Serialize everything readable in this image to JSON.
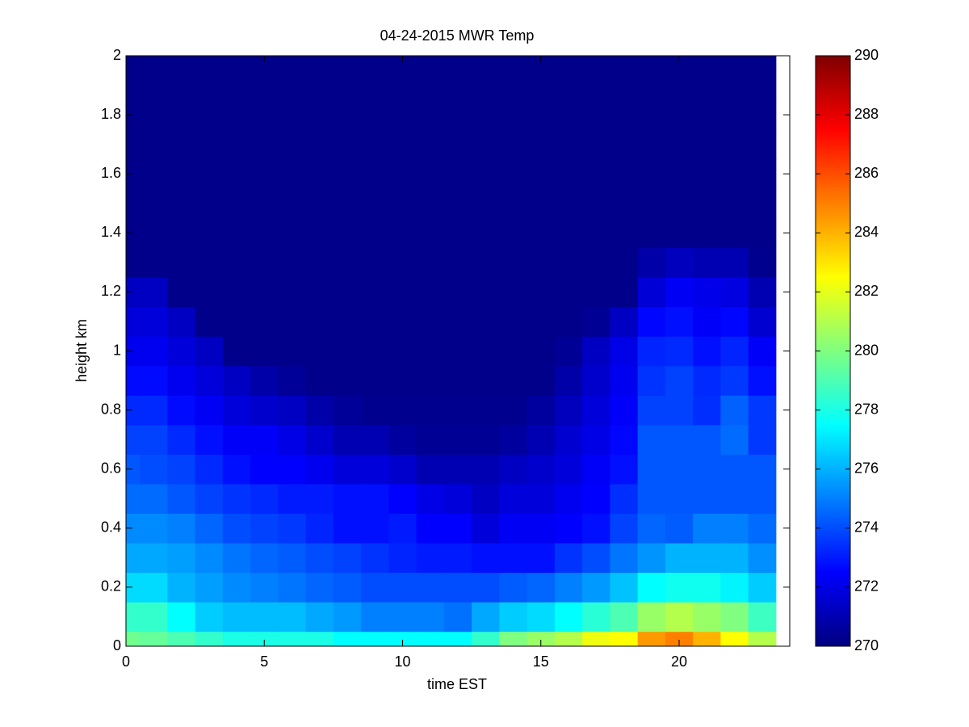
{
  "chart_data": {
    "type": "heatmap",
    "title": "04-24-2015 MWR Temp",
    "xlabel": "time EST",
    "ylabel": "height km",
    "colormap": "jet",
    "xlim": [
      0,
      24
    ],
    "ylim": [
      0,
      2
    ],
    "xticks": [
      0,
      5,
      10,
      15,
      20
    ],
    "yticks": [
      0,
      0.2,
      0.4,
      0.6,
      0.8,
      1,
      1.2,
      1.4,
      1.6,
      1.8,
      2
    ],
    "x_edges": [
      0,
      0.5,
      1.5,
      2.5,
      3.5,
      4.5,
      5.5,
      6.5,
      7.5,
      8.5,
      9.5,
      10.5,
      11.5,
      12.5,
      13.5,
      14.5,
      15.5,
      16.5,
      17.5,
      18.5,
      19.5,
      20.5,
      21.5,
      22.5,
      23.5
    ],
    "y_edges": [
      0,
      0.05,
      0.15,
      0.25,
      0.35,
      0.45,
      0.55,
      0.65,
      0.75,
      0.85,
      0.95,
      1.05,
      1.15,
      1.25,
      1.35,
      1.45,
      1.55,
      1.65,
      1.75,
      1.85,
      1.95,
      2
    ],
    "values": [
      [
        279.7,
        279.5,
        279,
        278.5,
        278,
        278,
        278,
        278,
        277.5,
        277.5,
        277.5,
        277.5,
        277.5,
        278.5,
        280,
        280.5,
        281,
        282.2,
        282.5,
        284.5,
        285,
        284,
        282.5,
        281
      ],
      [
        278.5,
        278.5,
        277.5,
        276.5,
        276.2,
        276.2,
        276.2,
        275.8,
        275.5,
        275,
        275,
        275,
        274.7,
        275.8,
        276.5,
        276.8,
        277.5,
        278.3,
        279,
        280.5,
        281,
        280.5,
        280,
        278.7
      ],
      [
        276.8,
        276.8,
        276,
        275.6,
        275.2,
        275,
        274.8,
        274.5,
        274.3,
        274,
        274,
        274,
        274,
        274,
        274.3,
        274.5,
        275,
        275.5,
        276.3,
        277.5,
        277.8,
        277.8,
        277.3,
        276.5
      ],
      [
        275.8,
        275.8,
        275.6,
        275.2,
        274.8,
        274.5,
        274.3,
        274,
        273.8,
        273.5,
        273.2,
        273,
        273,
        272.8,
        272.8,
        272.8,
        273.5,
        274,
        274.8,
        275.4,
        276,
        276,
        276,
        275.3
      ],
      [
        275.2,
        275.2,
        275,
        274.5,
        274,
        273.8,
        273.6,
        273.2,
        272.8,
        272.8,
        273,
        272.5,
        272.5,
        271.8,
        272.3,
        272.3,
        272.5,
        272.8,
        273.8,
        274.5,
        274.3,
        275,
        275,
        274.6
      ],
      [
        274.6,
        274.6,
        274.2,
        273.8,
        273.5,
        273.3,
        273,
        273,
        272.8,
        272.8,
        272.5,
        272,
        271.8,
        271.3,
        271.8,
        271.8,
        272.2,
        272.5,
        273.4,
        274.2,
        274.2,
        274.2,
        274.2,
        274.2
      ],
      [
        274.2,
        274,
        273.8,
        273.3,
        272.8,
        272.5,
        272.5,
        272.2,
        271.8,
        271.8,
        271.5,
        271,
        271,
        271,
        271.3,
        271.5,
        271.8,
        272.4,
        272.8,
        274.2,
        274.2,
        274.2,
        274.2,
        274.2
      ],
      [
        273.8,
        273.8,
        273.3,
        272.8,
        272.4,
        272.4,
        272,
        271.5,
        271,
        271,
        270.6,
        270.4,
        270.4,
        270.4,
        270.6,
        271,
        271.6,
        272,
        272.6,
        274.2,
        274.2,
        274.2,
        274.6,
        273.6
      ],
      [
        273.3,
        273.3,
        272.7,
        272.3,
        271.8,
        271.5,
        271.3,
        270.8,
        270.5,
        270.3,
        270.3,
        270.3,
        270.3,
        270.3,
        270.3,
        270.6,
        271.2,
        271.8,
        272.4,
        273.8,
        273.8,
        273.4,
        274.4,
        273.6
      ],
      [
        272.7,
        272.7,
        272.2,
        271.8,
        271.3,
        270.8,
        270.5,
        270.2,
        270.2,
        270.2,
        270.2,
        270.2,
        270.2,
        270.2,
        270.2,
        270.2,
        270.8,
        271.5,
        272.2,
        273.5,
        273.8,
        273.3,
        273.6,
        272.8
      ],
      [
        272.2,
        272.2,
        271.8,
        271.3,
        270.2,
        270.2,
        270.2,
        270.2,
        270.2,
        270.2,
        270.2,
        270.2,
        270.2,
        270.2,
        270.2,
        270.2,
        270.4,
        271.3,
        272,
        273.2,
        273.3,
        272.8,
        273.2,
        272.4
      ],
      [
        271.8,
        271.8,
        271.3,
        270.2,
        270.2,
        270.2,
        270.2,
        270.2,
        270.2,
        270.2,
        270.2,
        270.2,
        270.2,
        270.2,
        270.2,
        270.2,
        270.2,
        270.4,
        271.3,
        272.6,
        272.8,
        272.4,
        272.6,
        271.6
      ],
      [
        271.3,
        271.3,
        270.2,
        270.2,
        270.2,
        270.2,
        270.2,
        270.2,
        270.2,
        270.2,
        270.2,
        270.2,
        270.2,
        270.2,
        270.2,
        270.2,
        270.2,
        270.2,
        270.2,
        271.7,
        272.3,
        272.1,
        271.9,
        271
      ],
      [
        270.2,
        270.2,
        270.2,
        270.2,
        270.2,
        270.2,
        270.2,
        270.2,
        270.2,
        270.2,
        270.2,
        270.2,
        270.2,
        270.2,
        270.2,
        270.2,
        270.2,
        270.2,
        270.2,
        270.8,
        271.2,
        271,
        271,
        270.3
      ],
      [
        270.2,
        270.2,
        270.2,
        270.2,
        270.2,
        270.2,
        270.2,
        270.2,
        270.2,
        270.2,
        270.2,
        270.2,
        270.2,
        270.2,
        270.2,
        270.2,
        270.2,
        270.2,
        270.2,
        270.2,
        270.2,
        270.2,
        270.2,
        270.2
      ],
      [
        270.2,
        270.2,
        270.2,
        270.2,
        270.2,
        270.2,
        270.2,
        270.2,
        270.2,
        270.2,
        270.2,
        270.2,
        270.2,
        270.2,
        270.2,
        270.2,
        270.2,
        270.2,
        270.2,
        270.2,
        270.2,
        270.2,
        270.2,
        270.2
      ],
      [
        270.2,
        270.2,
        270.2,
        270.2,
        270.2,
        270.2,
        270.2,
        270.2,
        270.2,
        270.2,
        270.2,
        270.2,
        270.2,
        270.2,
        270.2,
        270.2,
        270.2,
        270.2,
        270.2,
        270.2,
        270.2,
        270.2,
        270.2,
        270.2
      ],
      [
        270.2,
        270.2,
        270.2,
        270.2,
        270.2,
        270.2,
        270.2,
        270.2,
        270.2,
        270.2,
        270.2,
        270.2,
        270.2,
        270.2,
        270.2,
        270.2,
        270.2,
        270.2,
        270.2,
        270.2,
        270.2,
        270.2,
        270.2,
        270.2
      ],
      [
        270.2,
        270.2,
        270.2,
        270.2,
        270.2,
        270.2,
        270.2,
        270.2,
        270.2,
        270.2,
        270.2,
        270.2,
        270.2,
        270.2,
        270.2,
        270.2,
        270.2,
        270.2,
        270.2,
        270.2,
        270.2,
        270.2,
        270.2,
        270.2
      ],
      [
        270.2,
        270.2,
        270.2,
        270.2,
        270.2,
        270.2,
        270.2,
        270.2,
        270.2,
        270.2,
        270.2,
        270.2,
        270.2,
        270.2,
        270.2,
        270.2,
        270.2,
        270.2,
        270.2,
        270.2,
        270.2,
        270.2,
        270.2,
        270.2
      ],
      [
        270.2,
        270.2,
        270.2,
        270.2,
        270.2,
        270.2,
        270.2,
        270.2,
        270.2,
        270.2,
        270.2,
        270.2,
        270.2,
        270.2,
        270.2,
        270.2,
        270.2,
        270.2,
        270.2,
        270.2,
        270.2,
        270.2,
        270.2,
        270.2
      ]
    ],
    "colorbar": {
      "lim": [
        270,
        290
      ],
      "ticks": [
        270,
        272,
        274,
        276,
        278,
        280,
        282,
        284,
        286,
        288,
        290
      ]
    }
  }
}
